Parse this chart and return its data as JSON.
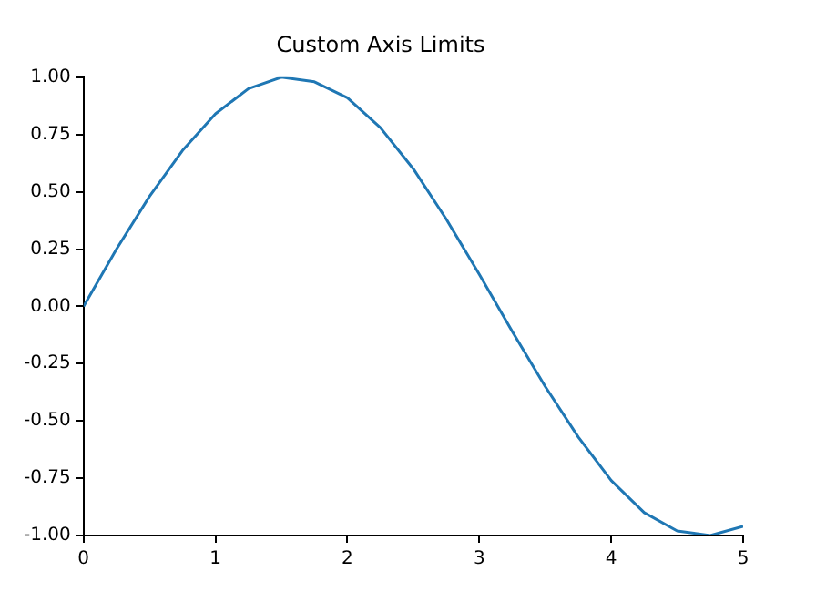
{
  "chart_data": {
    "type": "line",
    "title": "Custom Axis Limits",
    "x": [
      0,
      0.25,
      0.5,
      0.75,
      1,
      1.25,
      1.5,
      1.75,
      2,
      2.25,
      2.5,
      2.75,
      3,
      3.25,
      3.5,
      3.75,
      4,
      4.25,
      4.5,
      4.75,
      5
    ],
    "series": [
      {
        "color": "#1f77b4",
        "values": [
          0,
          0.25,
          0.48,
          0.68,
          0.84,
          0.95,
          1.0,
          0.98,
          0.91,
          0.78,
          0.6,
          0.38,
          0.14,
          -0.11,
          -0.35,
          -0.57,
          -0.76,
          -0.9,
          -0.98,
          -1.0,
          -0.96
        ]
      }
    ],
    "xlim": [
      0,
      5
    ],
    "xticks": [
      0,
      1,
      2,
      3,
      4,
      5
    ],
    "ylim": [
      -1,
      1
    ],
    "yticks": [
      {
        "value": -1,
        "label": "-1.00"
      },
      {
        "value": -0.75,
        "label": "-0.75"
      },
      {
        "value": -0.5,
        "label": "-0.50"
      },
      {
        "value": -0.25,
        "label": "-0.25"
      },
      {
        "value": 0,
        "label": "0.00"
      },
      {
        "value": 0.25,
        "label": "0.25"
      },
      {
        "value": 0.5,
        "label": "0.50"
      },
      {
        "value": 0.75,
        "label": "0.75"
      },
      {
        "value": 1,
        "label": "1.00"
      }
    ],
    "grid": false,
    "legend": false
  }
}
